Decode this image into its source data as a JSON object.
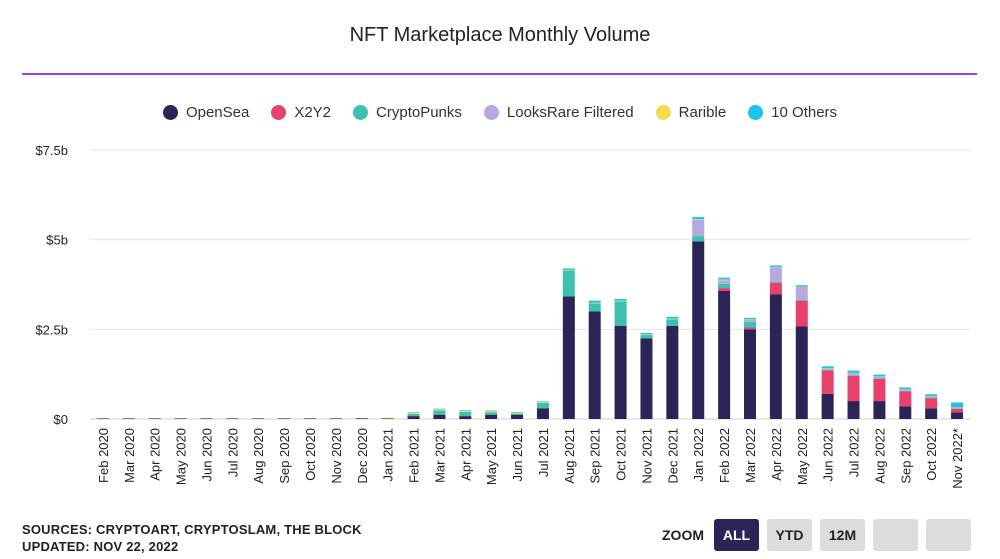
{
  "header": {
    "title": "NFT Marketplace Monthly Volume"
  },
  "colors": {
    "OpenSea": "#2c2457",
    "X2Y2": "#e8416d",
    "CryptoPunks": "#3cc1b0",
    "LooksRare Filtered": "#b7a9e0",
    "Rarible": "#f5dc4a",
    "10 Others": "#1cc3ea"
  },
  "chart_data": {
    "type": "bar",
    "stacked": true,
    "categories": [
      "Feb 2020",
      "Mar 2020",
      "Apr 2020",
      "May 2020",
      "Jun 2020",
      "Jul 2020",
      "Aug 2020",
      "Sep 2020",
      "Oct 2020",
      "Nov 2020",
      "Dec 2020",
      "Jan 2021",
      "Feb 2021",
      "Mar 2021",
      "Apr 2021",
      "May 2021",
      "Jun 2021",
      "Jul 2021",
      "Aug 2021",
      "Sep 2021",
      "Oct 2021",
      "Nov 2021",
      "Dec 2021",
      "Jan 2022",
      "Feb 2022",
      "Mar 2022",
      "Apr 2022",
      "May 2022",
      "Jun 2022",
      "Jul 2022",
      "Aug 2022",
      "Sep 2022",
      "Oct 2022",
      "Nov 2022*"
    ],
    "series": [
      {
        "name": "OpenSea",
        "values": [
          0.001,
          0.001,
          0.001,
          0.002,
          0.002,
          0.003,
          0.005,
          0.01,
          0.01,
          0.01,
          0.02,
          0.01,
          0.08,
          0.12,
          0.08,
          0.12,
          0.12,
          0.3,
          3.42,
          3.0,
          2.6,
          2.25,
          2.6,
          4.95,
          3.57,
          2.5,
          3.48,
          2.58,
          0.7,
          0.5,
          0.5,
          0.35,
          0.3,
          0.18
        ]
      },
      {
        "name": "X2Y2",
        "values": [
          0,
          0,
          0,
          0,
          0,
          0,
          0,
          0,
          0,
          0,
          0,
          0,
          0,
          0,
          0,
          0,
          0,
          0,
          0,
          0,
          0,
          0,
          0,
          0,
          0.08,
          0.05,
          0.32,
          0.72,
          0.65,
          0.7,
          0.62,
          0.42,
          0.28,
          0.1
        ]
      },
      {
        "name": "CryptoPunks",
        "values": [
          0,
          0,
          0,
          0,
          0,
          0,
          0,
          0,
          0,
          0,
          0,
          0.01,
          0.06,
          0.12,
          0.12,
          0.07,
          0.03,
          0.15,
          0.72,
          0.22,
          0.68,
          0.09,
          0.18,
          0.15,
          0.12,
          0.16,
          0.03,
          0.02,
          0.02,
          0.02,
          0.02,
          0.02,
          0.02,
          0.02
        ]
      },
      {
        "name": "LooksRare Filtered",
        "values": [
          0,
          0,
          0,
          0,
          0,
          0,
          0,
          0,
          0,
          0,
          0,
          0,
          0,
          0,
          0,
          0,
          0,
          0,
          0,
          0,
          0,
          0,
          0,
          0.45,
          0.1,
          0.06,
          0.4,
          0.36,
          0.04,
          0.06,
          0.04,
          0.03,
          0.03,
          0.02
        ]
      },
      {
        "name": "Rarible",
        "values": [
          0,
          0,
          0,
          0,
          0,
          0,
          0,
          0,
          0,
          0,
          0,
          0.01,
          0.03,
          0.03,
          0.03,
          0.03,
          0.03,
          0.02,
          0.02,
          0.02,
          0.02,
          0.02,
          0.02,
          0.02,
          0.02,
          0.01,
          0.01,
          0.01,
          0.01,
          0.01,
          0.01,
          0.01,
          0.01,
          0.01
        ]
      },
      {
        "name": "10 Others",
        "values": [
          0,
          0,
          0,
          0,
          0,
          0,
          0,
          0,
          0,
          0,
          0,
          0,
          0.01,
          0.01,
          0.01,
          0.01,
          0.01,
          0.02,
          0.04,
          0.06,
          0.05,
          0.04,
          0.05,
          0.06,
          0.05,
          0.04,
          0.04,
          0.04,
          0.05,
          0.06,
          0.05,
          0.05,
          0.05,
          0.13
        ]
      }
    ],
    "ylim": [
      0,
      7.5
    ],
    "yticks": [
      0,
      2.5,
      5,
      7.5
    ],
    "ytick_labels": [
      "$0",
      "$2.5b",
      "$5b",
      "$7.5b"
    ],
    "grid": true,
    "legend_position": "top-center"
  },
  "footer": {
    "sources": "SOURCES: CRYPTOART, CRYPTOSLAM, THE BLOCK",
    "updated": "UPDATED: NOV 22, 2022"
  },
  "zoom": {
    "label": "ZOOM",
    "buttons": [
      "ALL",
      "YTD",
      "12M",
      "",
      ""
    ],
    "active": "ALL"
  }
}
